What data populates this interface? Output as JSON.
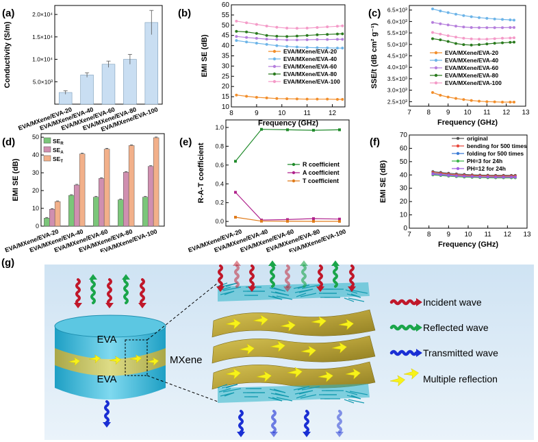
{
  "panels": {
    "a": "(a)",
    "b": "(b)",
    "c": "(c)",
    "d": "(d)",
    "e": "(e)",
    "f": "(f)",
    "g": "(g)"
  },
  "samples": [
    "EVA/MXene/EVA-20",
    "EVA/MXene/EVA-40",
    "EVA/MXene/EVA-60",
    "EVA/MXene/EVA-80",
    "EVA/MXene/EVA-100"
  ],
  "colors": {
    "orange": "#f28e2b",
    "lightblue": "#6cb4e8",
    "violet": "#b57edc",
    "green": "#2a7a1e",
    "pink": "#f49ac8",
    "bar": "#c9def2",
    "R": "#1f8a2a",
    "A": "#b0228c",
    "T": "#e07b1a"
  },
  "chart_data": [
    {
      "id": "a",
      "type": "bar",
      "ylabel": "Conductivity (S/m)",
      "categories": [
        "EVA/MXene/EVA-20",
        "EVA/MXene/EVA-40",
        "EVA/MXene/EVA-60",
        "EVA/MXene/EVA-80",
        "EVA/MXene/EVA-100"
      ],
      "values": [
        2600,
        6500,
        8900,
        10000,
        18200
      ],
      "errors": [
        400,
        500,
        700,
        1100,
        2700
      ],
      "ylim": [
        0,
        22000
      ],
      "yticks": [
        {
          "v": 5000,
          "t": "5.0×10³"
        },
        {
          "v": 10000,
          "t": "1.0×10⁴"
        },
        {
          "v": 15000,
          "t": "1.5×10⁴"
        },
        {
          "v": 20000,
          "t": "2.0×10⁴"
        }
      ]
    },
    {
      "id": "b",
      "type": "line",
      "xlabel": "Frequency (GHz)",
      "ylabel": "EMI SE (dB)",
      "xlim": [
        8,
        12.5
      ],
      "ylim": [
        10,
        60
      ],
      "xticks": [
        "8",
        "9",
        "10",
        "11",
        "12"
      ],
      "yticks": [
        "10",
        "15",
        "20",
        "25",
        "30",
        "35",
        "40",
        "45",
        "50",
        "55",
        "60"
      ],
      "x": [
        8.2,
        8.6,
        9.0,
        9.4,
        9.8,
        10.2,
        10.6,
        11.0,
        11.4,
        11.8,
        12.2,
        12.4
      ],
      "series": [
        {
          "name": "EVA/MXene/EVA-20",
          "values": [
            15.8,
            15.2,
            14.7,
            14.4,
            14.1,
            14.0,
            13.9,
            13.8,
            13.8,
            13.8,
            13.7,
            13.7
          ]
        },
        {
          "name": "EVA/MXene/EVA-40",
          "values": [
            42.5,
            41.8,
            41.2,
            40.6,
            40.0,
            39.6,
            39.3,
            39.1,
            39.0,
            38.9,
            38.8,
            38.8
          ]
        },
        {
          "name": "EVA/MXene/EVA-60",
          "values": [
            44.5,
            44.0,
            43.6,
            43.2,
            43.0,
            42.8,
            42.8,
            42.9,
            43.0,
            43.0,
            43.1,
            43.1
          ]
        },
        {
          "name": "EVA/MXene/EVA-80",
          "values": [
            47.0,
            46.7,
            46.0,
            45.0,
            44.6,
            44.5,
            44.7,
            45.0,
            45.3,
            45.5,
            45.7,
            45.8
          ]
        },
        {
          "name": "EVA/MXene/EVA-100",
          "values": [
            52.0,
            51.2,
            50.4,
            49.6,
            49.0,
            48.6,
            48.5,
            48.6,
            48.9,
            49.2,
            49.5,
            49.7
          ]
        }
      ]
    },
    {
      "id": "c",
      "type": "line",
      "xlabel": "Frequency (GHz)",
      "ylabel": "SSE/t (dB cm² g⁻¹)",
      "xlim": [
        7,
        13
      ],
      "ylim": [
        2300,
        6700
      ],
      "xticks": [
        "7",
        "8",
        "9",
        "10",
        "11",
        "12",
        "13"
      ],
      "yticks": [
        {
          "v": 2500,
          "t": "2.5×10³"
        },
        {
          "v": 3000,
          "t": "3.0×10³"
        },
        {
          "v": 3500,
          "t": "3.5×10³"
        },
        {
          "v": 4000,
          "t": "4.0×10³"
        },
        {
          "v": 4500,
          "t": "4.5×10³"
        },
        {
          "v": 5000,
          "t": "5.0×10³"
        },
        {
          "v": 5500,
          "t": "5.5×10³"
        },
        {
          "v": 6000,
          "t": "6.0×10³"
        },
        {
          "v": 6500,
          "t": "6.5×10³"
        }
      ],
      "x": [
        8.2,
        8.6,
        9.0,
        9.4,
        9.8,
        10.2,
        10.6,
        11.0,
        11.4,
        11.8,
        12.2,
        12.4
      ],
      "series": [
        {
          "name": "EVA/MXene/EVA-20",
          "values": [
            2900,
            2780,
            2700,
            2640,
            2590,
            2550,
            2520,
            2500,
            2490,
            2480,
            2480,
            2480
          ]
        },
        {
          "name": "EVA/MXene/EVA-40",
          "values": [
            6550,
            6460,
            6390,
            6320,
            6260,
            6210,
            6170,
            6140,
            6110,
            6090,
            6070,
            6060
          ]
        },
        {
          "name": "EVA/MXene/EVA-60",
          "values": [
            5960,
            5900,
            5850,
            5800,
            5760,
            5740,
            5730,
            5730,
            5730,
            5730,
            5740,
            5740
          ]
        },
        {
          "name": "EVA/MXene/EVA-80",
          "values": [
            5250,
            5200,
            5130,
            5040,
            4990,
            4970,
            4990,
            5020,
            5050,
            5070,
            5090,
            5100
          ]
        },
        {
          "name": "EVA/MXene/EVA-100",
          "values": [
            5520,
            5450,
            5380,
            5320,
            5270,
            5240,
            5230,
            5230,
            5250,
            5270,
            5280,
            5290
          ]
        }
      ]
    },
    {
      "id": "d",
      "type": "bar",
      "ylabel": "EMI SE (dB)",
      "ylim": [
        0,
        52
      ],
      "yticks": [
        "0",
        "10",
        "20",
        "30",
        "40",
        "50"
      ],
      "categories": [
        "EVA/MXene/EVA-20",
        "EVA/MXene/EVA-40",
        "EVA/MXene/EVA-60",
        "EVA/MXene/EVA-80",
        "EVA/MXene/EVA-100"
      ],
      "series": [
        {
          "name": "SE_R",
          "label": "SE",
          "sub": "R",
          "color": "#7bc67a",
          "values": [
            4.5,
            17.3,
            16.3,
            14.8,
            16.3
          ]
        },
        {
          "name": "SE_A",
          "label": "SE",
          "sub": "A",
          "color": "#d08fb0",
          "values": [
            9.5,
            23.1,
            26.8,
            30.3,
            33.6
          ]
        },
        {
          "name": "SE_T",
          "label": "SE",
          "sub": "T",
          "color": "#f2b08a",
          "values": [
            13.8,
            40.6,
            43.3,
            45.3,
            49.7
          ]
        }
      ]
    },
    {
      "id": "e",
      "type": "line",
      "ylabel": "R-A-T coefficient",
      "ylim": [
        -0.05,
        1.08
      ],
      "yticks": [
        "0.0",
        "0.2",
        "0.4",
        "0.6",
        "0.8",
        "1.0"
      ],
      "categories": [
        "EVA/MXene/EVA-20",
        "EVA/MXene/EVA-40",
        "EVA/MXene/EVA-60",
        "EVA/MXene/EVA-80",
        "EVA/MXene/EVA-100"
      ],
      "series": [
        {
          "name": "R coefficient",
          "values": [
            0.64,
            0.98,
            0.975,
            0.97,
            0.975
          ]
        },
        {
          "name": "A coefficient",
          "values": [
            0.31,
            0.015,
            0.02,
            0.03,
            0.025
          ]
        },
        {
          "name": "T coefficient",
          "values": [
            0.045,
            0.003,
            0.002,
            0.001,
            0.001
          ]
        }
      ]
    },
    {
      "id": "f",
      "type": "line",
      "xlabel": "Frequency (GHz)",
      "ylabel": "EMI SE (dB)",
      "xlim": [
        7,
        13
      ],
      "ylim": [
        0,
        70
      ],
      "xticks": [
        "7",
        "8",
        "9",
        "10",
        "11",
        "12",
        "13"
      ],
      "yticks": [
        "0",
        "10",
        "20",
        "30",
        "40",
        "50",
        "60",
        "70"
      ],
      "x": [
        8.2,
        8.6,
        9.0,
        9.4,
        9.8,
        10.2,
        10.6,
        11.0,
        11.4,
        11.8,
        12.2,
        12.4
      ],
      "series": [
        {
          "name": "original",
          "color": "#555555",
          "values": [
            42.5,
            41.9,
            41.3,
            40.8,
            40.4,
            40.1,
            39.9,
            39.8,
            39.7,
            39.7,
            39.7,
            39.7
          ]
        },
        {
          "name": "bending for 500 times",
          "color": "#e8483c",
          "values": [
            41.8,
            41.2,
            40.6,
            40.1,
            39.7,
            39.5,
            39.3,
            39.2,
            39.1,
            39.1,
            39.1,
            39.1
          ]
        },
        {
          "name": "folding for 500 times",
          "color": "#3a7bd5",
          "values": [
            41.0,
            40.4,
            39.9,
            39.4,
            39.0,
            38.8,
            38.6,
            38.5,
            38.4,
            38.4,
            38.4,
            38.4
          ]
        },
        {
          "name": "PH=3 for 24h",
          "color": "#3cb44b",
          "values": [
            40.0,
            39.6,
            39.1,
            38.7,
            38.4,
            38.2,
            38.0,
            37.9,
            37.8,
            37.8,
            37.8,
            37.8
          ]
        },
        {
          "name": "PH=12 for 24h",
          "color": "#a15ee0",
          "values": [
            40.6,
            40.1,
            39.6,
            39.2,
            38.9,
            38.7,
            38.5,
            38.4,
            38.3,
            38.3,
            38.3,
            38.3
          ]
        }
      ]
    }
  ],
  "schematic": {
    "eva_top": "EVA",
    "eva_bottom": "EVA",
    "mxene": "MXene",
    "legend": [
      "Incident wave",
      "Reflected wave",
      "Transmitted wave",
      "Multiple reflection"
    ]
  }
}
